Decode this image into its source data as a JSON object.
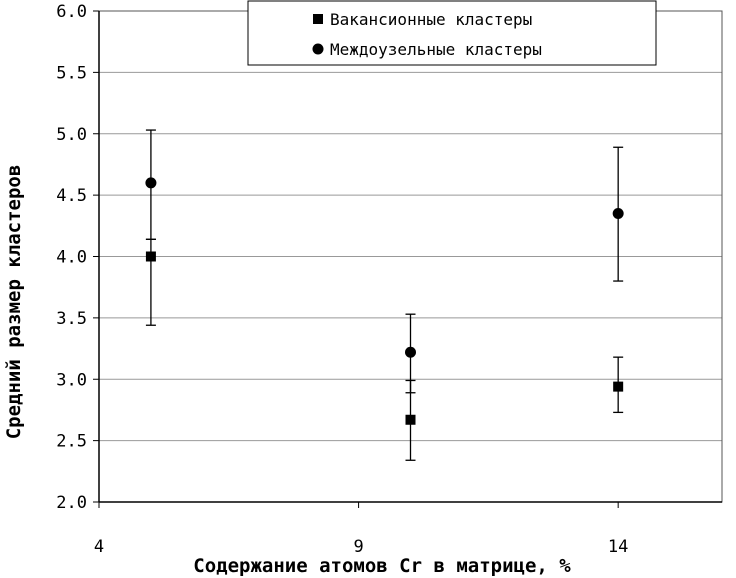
{
  "chart_data": {
    "type": "scatter",
    "title": "",
    "xlabel": "Содержание атомов Cr в матрице, %",
    "ylabel": "Средний размер кластеров",
    "xlim": [
      4,
      16
    ],
    "ylim": [
      2.0,
      6.0
    ],
    "x_ticks": [
      4,
      9,
      14
    ],
    "y_ticks": [
      2.0,
      2.5,
      3.0,
      3.5,
      4.0,
      4.5,
      5.0,
      5.5,
      6.0
    ],
    "x_tick_labels": [
      "4",
      "9",
      "14"
    ],
    "y_tick_labels": [
      "2.0",
      "2.5",
      "3.0",
      "3.5",
      "4.0",
      "4.5",
      "5.0",
      "5.5",
      "6.0"
    ],
    "grid": "horizontal",
    "legend_position": "top-right",
    "error_bars": true,
    "series": [
      {
        "name": "Вакансионные кластеры",
        "marker": "square",
        "color": "#000000",
        "points": [
          {
            "x": 5,
            "y": 4.0,
            "y_low": 3.44,
            "y_high": 4.14
          },
          {
            "x": 10,
            "y": 2.67,
            "y_low": 2.34,
            "y_high": 2.99
          },
          {
            "x": 14,
            "y": 2.94,
            "y_low": 2.73,
            "y_high": 3.18
          }
        ]
      },
      {
        "name": "Междоузельные кластеры",
        "marker": "circle",
        "color": "#000000",
        "points": [
          {
            "x": 5,
            "y": 4.6,
            "y_low": 4.14,
            "y_high": 5.03
          },
          {
            "x": 10,
            "y": 3.22,
            "y_low": 2.89,
            "y_high": 3.53
          },
          {
            "x": 14,
            "y": 4.35,
            "y_low": 3.8,
            "y_high": 4.89
          }
        ]
      }
    ]
  }
}
